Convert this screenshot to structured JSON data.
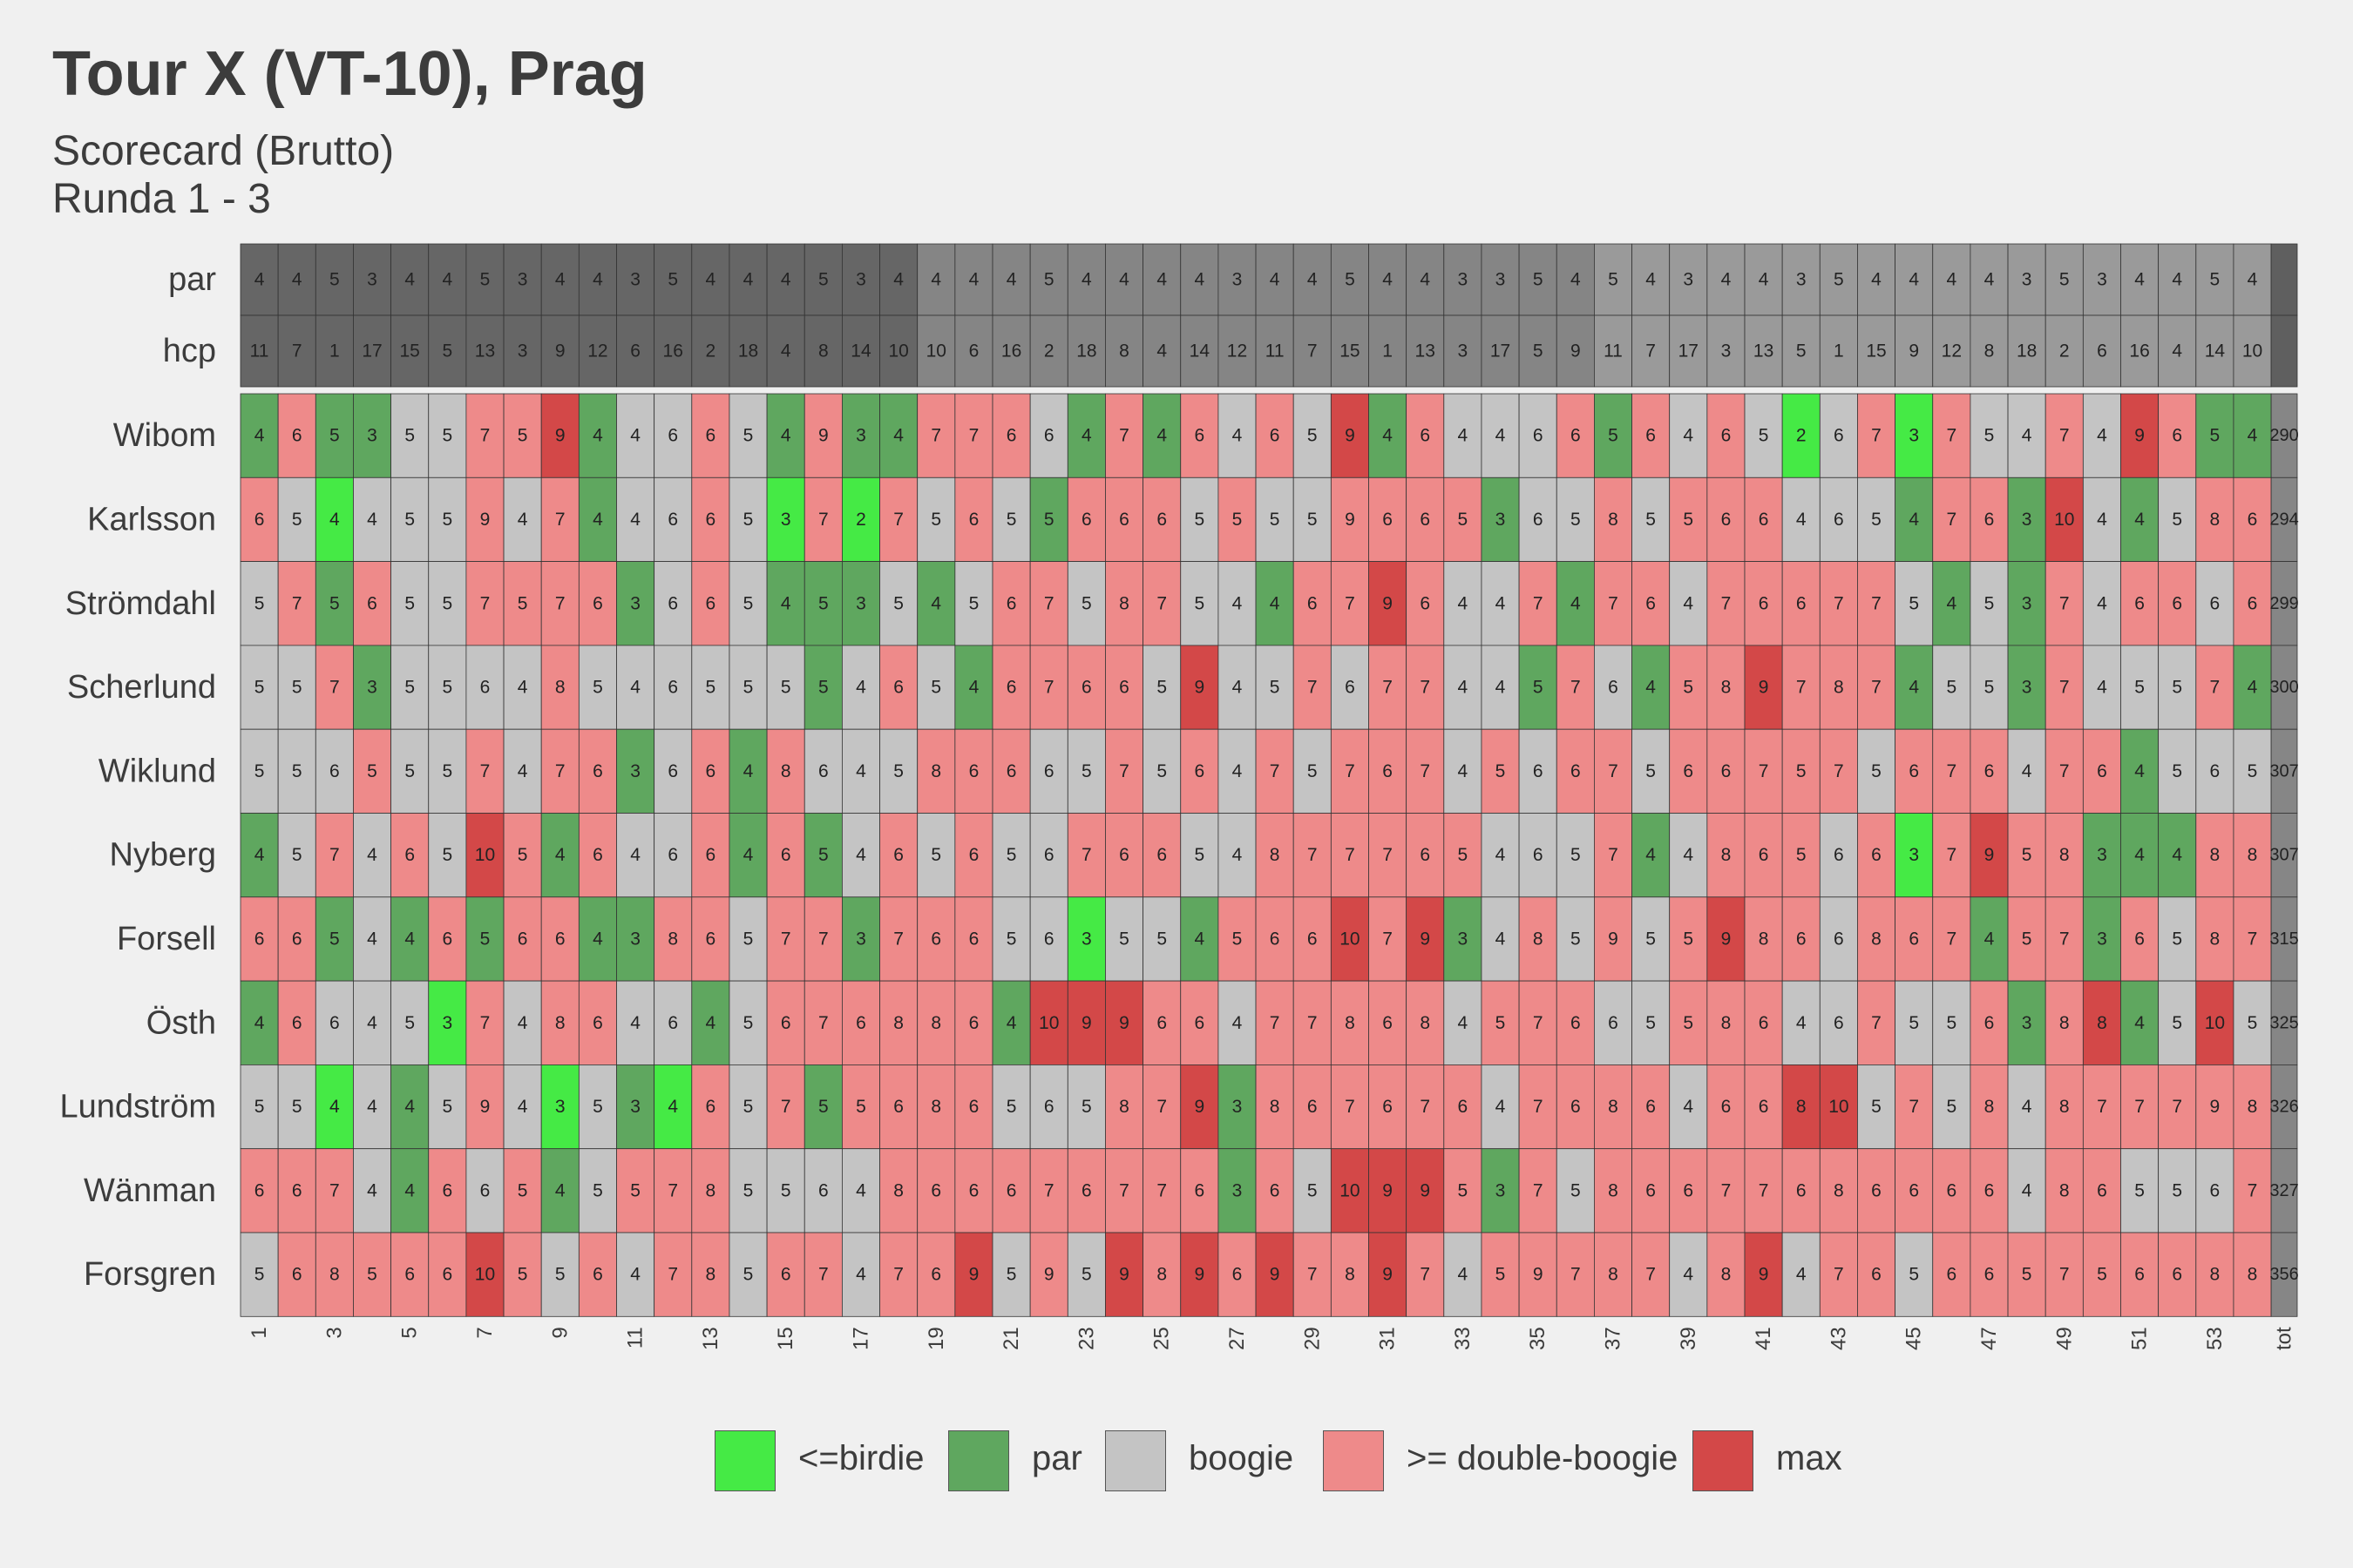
{
  "title": "Tour X (VT-10), Prag",
  "subtitle_lines": [
    "Scorecard (Brutto)",
    "Runda 1 - 3"
  ],
  "colors": {
    "birdie": "#45ea45",
    "par": "#5fa75f",
    "bogey": "#c4c4c4",
    "double_bogey": "#ee8a8a",
    "max": "#d34848",
    "header_round1": "#666666",
    "header_round2": "#858585",
    "header_round3": "#9a9a9a",
    "total_column": "#868686"
  },
  "chart_data": {
    "type": "heatmap",
    "title": "Tour X (VT-10), Prag",
    "subtitle": "Scorecard (Brutto)\nRunda 1 - 3",
    "header_rows": [
      {
        "label": "par",
        "values": [
          4,
          4,
          5,
          3,
          4,
          4,
          5,
          3,
          4,
          4,
          3,
          5,
          4,
          4,
          4,
          5,
          3,
          4,
          4,
          4,
          4,
          5,
          4,
          4,
          4,
          4,
          3,
          4,
          4,
          5,
          4,
          4,
          3,
          3,
          5,
          4,
          5,
          4,
          3,
          4,
          4,
          3,
          5,
          4,
          4,
          4,
          4,
          3,
          5,
          3,
          4,
          4,
          5,
          4
        ]
      },
      {
        "label": "hcp",
        "values": [
          11,
          7,
          1,
          17,
          15,
          5,
          13,
          3,
          9,
          12,
          6,
          16,
          2,
          18,
          4,
          8,
          14,
          10,
          10,
          6,
          16,
          2,
          18,
          8,
          4,
          14,
          12,
          11,
          7,
          15,
          1,
          13,
          3,
          17,
          5,
          9,
          11,
          7,
          17,
          3,
          13,
          5,
          1,
          15,
          9,
          12,
          8,
          18,
          2,
          6,
          16,
          4,
          14,
          10
        ]
      }
    ],
    "x_ticks": [
      "1",
      "3",
      "5",
      "7",
      "9",
      "11",
      "13",
      "15",
      "17",
      "19",
      "21",
      "23",
      "25",
      "27",
      "29",
      "31",
      "33",
      "35",
      "37",
      "39",
      "41",
      "43",
      "45",
      "47",
      "49",
      "51",
      "53",
      "tot"
    ],
    "players": [
      {
        "name": "Wibom",
        "scores": [
          4,
          6,
          5,
          3,
          5,
          5,
          7,
          5,
          9,
          4,
          4,
          6,
          6,
          5,
          4,
          9,
          3,
          4,
          7,
          7,
          6,
          6,
          4,
          7,
          4,
          6,
          4,
          6,
          5,
          9,
          4,
          6,
          4,
          4,
          6,
          6,
          5,
          6,
          4,
          6,
          5,
          2,
          6,
          7,
          3,
          7,
          5,
          4,
          7,
          4,
          9,
          6,
          5,
          4
        ],
        "max_holes": [
          9,
          30,
          51
        ],
        "total": 290
      },
      {
        "name": "Karlsson",
        "scores": [
          6,
          5,
          4,
          4,
          5,
          5,
          9,
          4,
          7,
          4,
          4,
          6,
          6,
          5,
          3,
          7,
          2,
          7,
          5,
          6,
          5,
          5,
          6,
          6,
          6,
          5,
          5,
          5,
          5,
          9,
          6,
          6,
          5,
          3,
          6,
          5,
          8,
          5,
          5,
          6,
          6,
          4,
          6,
          5,
          4,
          7,
          6,
          3,
          10,
          4,
          4,
          5,
          8,
          6
        ],
        "max_holes": [
          49
        ],
        "total": 294
      },
      {
        "name": "Strömdahl",
        "scores": [
          5,
          7,
          5,
          6,
          5,
          5,
          7,
          5,
          7,
          6,
          3,
          6,
          6,
          5,
          4,
          5,
          3,
          5,
          4,
          5,
          6,
          7,
          5,
          8,
          7,
          5,
          4,
          4,
          6,
          7,
          9,
          6,
          4,
          4,
          7,
          4,
          7,
          6,
          4,
          7,
          6,
          6,
          7,
          7,
          5,
          4,
          5,
          3,
          7,
          4,
          6,
          6,
          6,
          6
        ],
        "max_holes": [
          31
        ],
        "total": 299
      },
      {
        "name": "Scherlund",
        "scores": [
          5,
          5,
          7,
          3,
          5,
          5,
          6,
          4,
          8,
          5,
          4,
          6,
          5,
          5,
          5,
          5,
          4,
          6,
          5,
          4,
          6,
          7,
          6,
          6,
          5,
          9,
          4,
          5,
          7,
          6,
          7,
          7,
          4,
          4,
          5,
          7,
          6,
          4,
          5,
          8,
          9,
          7,
          8,
          7,
          4,
          5,
          5,
          3,
          7,
          4,
          5,
          5,
          7,
          4
        ],
        "max_holes": [
          26,
          41
        ],
        "total": 300
      },
      {
        "name": "Wiklund",
        "scores": [
          5,
          5,
          6,
          5,
          5,
          5,
          7,
          4,
          7,
          6,
          3,
          6,
          6,
          4,
          8,
          6,
          4,
          5,
          8,
          6,
          6,
          6,
          5,
          7,
          5,
          6,
          4,
          7,
          5,
          7,
          6,
          7,
          4,
          5,
          6,
          6,
          7,
          5,
          6,
          6,
          7,
          5,
          7,
          5,
          6,
          7,
          6,
          4,
          7,
          6,
          4,
          5,
          6,
          5
        ],
        "max_holes": [],
        "total": 307
      },
      {
        "name": "Nyberg",
        "scores": [
          4,
          5,
          7,
          4,
          6,
          5,
          10,
          5,
          4,
          6,
          4,
          6,
          6,
          4,
          6,
          5,
          4,
          6,
          5,
          6,
          5,
          6,
          7,
          6,
          6,
          5,
          4,
          8,
          7,
          7,
          7,
          6,
          5,
          4,
          6,
          5,
          7,
          4,
          4,
          8,
          6,
          5,
          6,
          6,
          3,
          7,
          9,
          5,
          8,
          3,
          4,
          4,
          8,
          8
        ],
        "max_holes": [
          7,
          47
        ],
        "total": 307
      },
      {
        "name": "Forsell",
        "scores": [
          6,
          6,
          5,
          4,
          4,
          6,
          5,
          6,
          6,
          4,
          3,
          8,
          6,
          5,
          7,
          7,
          3,
          7,
          6,
          6,
          5,
          6,
          3,
          5,
          5,
          4,
          5,
          6,
          6,
          10,
          7,
          9,
          3,
          4,
          8,
          5,
          9,
          5,
          5,
          9,
          8,
          6,
          6,
          8,
          6,
          7,
          4,
          5,
          7,
          3,
          6,
          5,
          8,
          7
        ],
        "max_holes": [
          30,
          32,
          40
        ],
        "total": 315
      },
      {
        "name": "Östh",
        "scores": [
          4,
          6,
          6,
          4,
          5,
          3,
          7,
          4,
          8,
          6,
          4,
          6,
          4,
          5,
          6,
          7,
          6,
          8,
          8,
          6,
          4,
          10,
          9,
          9,
          6,
          6,
          4,
          7,
          7,
          8,
          6,
          8,
          4,
          5,
          7,
          6,
          6,
          5,
          5,
          8,
          6,
          4,
          6,
          7,
          5,
          5,
          6,
          3,
          8,
          8,
          4,
          5,
          10,
          5
        ],
        "max_holes": [
          22,
          23,
          24,
          50,
          53
        ],
        "total": 325
      },
      {
        "name": "Lundström",
        "scores": [
          5,
          5,
          4,
          4,
          4,
          5,
          9,
          4,
          3,
          5,
          3,
          4,
          6,
          5,
          7,
          5,
          5,
          6,
          8,
          6,
          5,
          6,
          5,
          8,
          7,
          9,
          3,
          8,
          6,
          7,
          6,
          7,
          6,
          4,
          7,
          6,
          8,
          6,
          4,
          6,
          6,
          8,
          10,
          5,
          7,
          5,
          8,
          4,
          8,
          7,
          7,
          7,
          9,
          8
        ],
        "max_holes": [
          26,
          42,
          43
        ],
        "total": 326
      },
      {
        "name": "Wänman",
        "scores": [
          6,
          6,
          7,
          4,
          4,
          6,
          6,
          5,
          4,
          5,
          5,
          7,
          8,
          5,
          5,
          6,
          4,
          8,
          6,
          6,
          6,
          7,
          6,
          7,
          7,
          6,
          3,
          6,
          5,
          10,
          9,
          9,
          5,
          3,
          7,
          5,
          8,
          6,
          6,
          7,
          7,
          6,
          8,
          6,
          6,
          6,
          6,
          4,
          8,
          6,
          5,
          5,
          6,
          7
        ],
        "max_holes": [
          30,
          31,
          32
        ],
        "total": 327
      },
      {
        "name": "Forsgren",
        "scores": [
          5,
          6,
          8,
          5,
          6,
          6,
          10,
          5,
          5,
          6,
          4,
          7,
          8,
          5,
          6,
          7,
          4,
          7,
          6,
          9,
          5,
          9,
          5,
          9,
          8,
          9,
          6,
          9,
          7,
          8,
          9,
          7,
          4,
          5,
          9,
          7,
          8,
          7,
          4,
          8,
          9,
          4,
          7,
          6,
          5,
          6,
          6,
          5,
          7,
          5,
          6,
          6,
          8,
          8
        ],
        "max_holes": [
          7,
          20,
          24,
          26,
          28,
          31,
          41
        ],
        "total": 356
      }
    ],
    "legend": [
      {
        "key": "birdie",
        "label": "<=birdie"
      },
      {
        "key": "par",
        "label": "par"
      },
      {
        "key": "bogey",
        "label": "boogie"
      },
      {
        "key": "double_bogey",
        "label": ">= double-boogie"
      },
      {
        "key": "max",
        "label": "max"
      }
    ],
    "legend_position": "bottom"
  }
}
